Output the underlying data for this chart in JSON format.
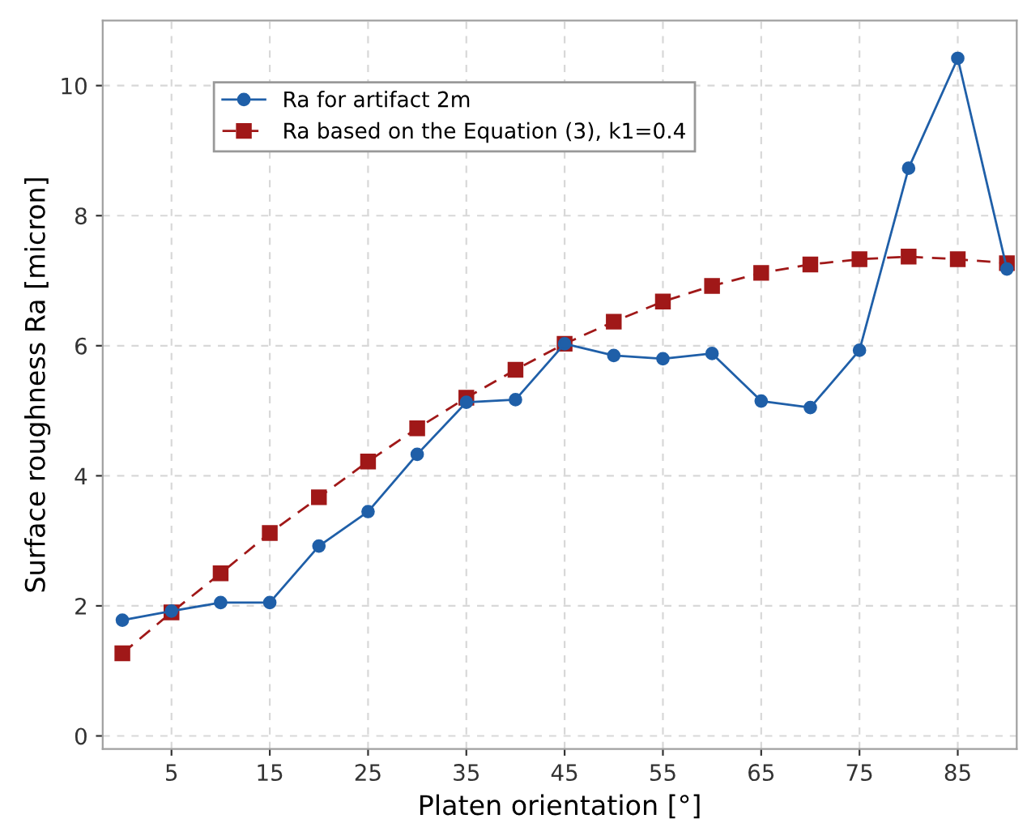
{
  "chart_data": {
    "type": "line",
    "xlabel": "Platen orientation [°]",
    "ylabel": "Surface roughness Ra [micron]",
    "x": [
      0,
      5,
      10,
      15,
      20,
      25,
      30,
      35,
      40,
      45,
      50,
      55,
      60,
      65,
      70,
      75,
      80,
      85,
      90
    ],
    "series": [
      {
        "name": "Ra for artifact 2m",
        "color": "#1f5fa8",
        "marker": "circle",
        "line_style": "solid",
        "values": [
          1.78,
          1.92,
          2.05,
          2.05,
          2.92,
          3.45,
          4.33,
          5.13,
          5.17,
          6.03,
          5.85,
          5.8,
          5.88,
          5.15,
          5.05,
          5.93,
          8.73,
          10.42,
          7.18
        ]
      },
      {
        "name": "Ra based on the Equation (3), k1=0.4",
        "color": "#a01818",
        "marker": "square",
        "line_style": "dashed",
        "values": [
          1.27,
          1.9,
          2.5,
          3.12,
          3.67,
          4.22,
          4.73,
          5.2,
          5.63,
          6.03,
          6.37,
          6.68,
          6.92,
          7.12,
          7.25,
          7.33,
          7.37,
          7.33,
          7.27
        ]
      }
    ],
    "xlim": [
      -2,
      91
    ],
    "ylim": [
      -0.2,
      11
    ],
    "xticks": [
      5,
      15,
      25,
      35,
      45,
      55,
      65,
      75,
      85
    ],
    "yticks": [
      0,
      2,
      4,
      6,
      8,
      10
    ],
    "grid": true,
    "legend": "top left"
  }
}
